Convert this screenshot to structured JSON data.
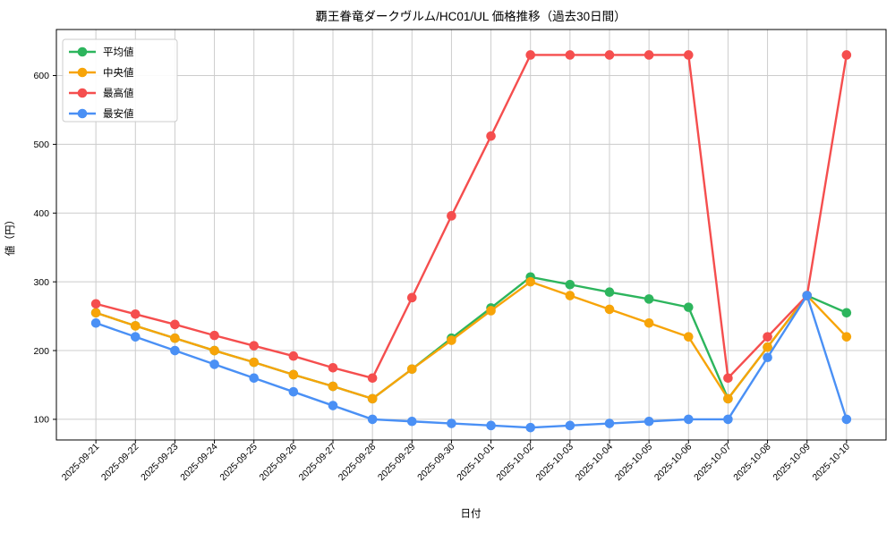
{
  "title": "覇王眷竜ダークヴルム/HC01/UL 価格推移（過去30日間）",
  "axes": {
    "x_label": "日付",
    "y_label": "値（円）"
  },
  "legend": {
    "position": "upper-left"
  },
  "colors": {
    "average": "#2db55d",
    "median": "#f7a408",
    "max": "#f54e4e",
    "min": "#4a90f5",
    "grid": "#cccccc",
    "spine": "#000000",
    "background": "#ffffff",
    "legend_border": "#cccccc"
  },
  "chart_data": {
    "type": "line",
    "title": "覇王眷竜ダークヴルム/HC01/UL 価格推移（過去30日間）",
    "xlabel": "日付",
    "ylabel": "値（円）",
    "grid": true,
    "legend_position": "upper left",
    "ylim": [
      70,
      667
    ],
    "yticks": [
      100,
      200,
      300,
      400,
      500,
      600
    ],
    "x": [
      "2025-09-21",
      "2025-09-22",
      "2025-09-23",
      "2025-09-24",
      "2025-09-25",
      "2025-09-26",
      "2025-09-27",
      "2025-09-28",
      "2025-09-29",
      "2025-09-30",
      "2025-10-01",
      "2025-10-02",
      "2025-10-03",
      "2025-10-04",
      "2025-10-05",
      "2025-10-06",
      "2025-10-07",
      "2025-10-08",
      "2025-10-09",
      "2025-10-10"
    ],
    "series": [
      {
        "key": "average",
        "name": "平均値",
        "color": "#2db55d",
        "values": [
          255,
          236,
          218,
          200,
          183,
          165,
          148,
          130,
          173,
          218,
          262,
          307,
          296,
          285,
          275,
          263,
          130,
          205,
          280,
          255
        ]
      },
      {
        "key": "median",
        "name": "中央値",
        "color": "#f7a408",
        "values": [
          255,
          236,
          218,
          200,
          183,
          165,
          148,
          130,
          173,
          215,
          258,
          300,
          280,
          260,
          240,
          220,
          130,
          205,
          280,
          220
        ]
      },
      {
        "key": "max",
        "name": "最高値",
        "color": "#f54e4e",
        "values": [
          268,
          253,
          238,
          222,
          207,
          192,
          175,
          160,
          277,
          396,
          512,
          630,
          630,
          630,
          630,
          630,
          160,
          220,
          280,
          630
        ]
      },
      {
        "key": "min",
        "name": "最安値",
        "color": "#4a90f5",
        "values": [
          240,
          220,
          200,
          180,
          160,
          140,
          120,
          100,
          97,
          94,
          91,
          88,
          91,
          94,
          97,
          100,
          100,
          190,
          280,
          100
        ]
      }
    ]
  }
}
